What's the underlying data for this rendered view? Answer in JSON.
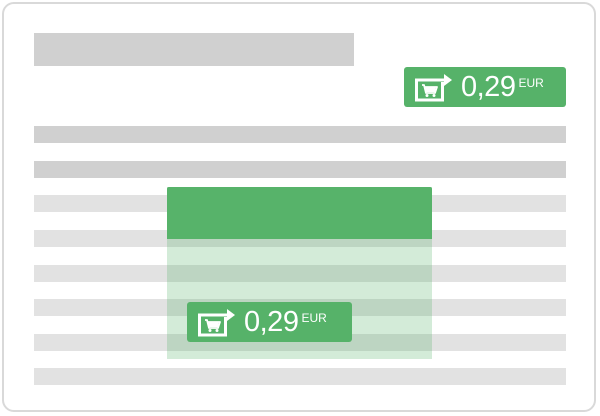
{
  "document": {
    "price_badges": [
      {
        "amount": "0,29",
        "currency": "EUR",
        "icon": "cart-arrow-icon"
      },
      {
        "amount": "0,29",
        "currency": "EUR",
        "icon": "cart-arrow-icon"
      }
    ]
  },
  "colors": {
    "accent_green": "#56b269",
    "placeholder_dark": "#d0d0d0",
    "placeholder_light": "#e2e2e2",
    "frame_border": "#d9d9d9"
  }
}
